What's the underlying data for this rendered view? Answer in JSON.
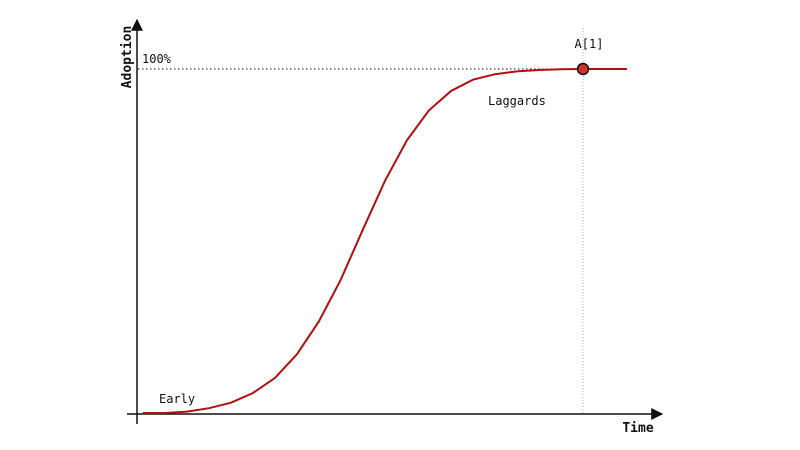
{
  "diagram": {
    "xlabel": "Time",
    "ylabel": "Adoption",
    "max_label": "100%",
    "point_label": "A[1]",
    "start_label": "Early",
    "end_label": "Laggards"
  },
  "chart_data": {
    "type": "line",
    "series": [
      {
        "x": [
          0,
          1,
          2,
          3,
          4,
          5,
          6,
          7,
          8,
          9,
          10,
          11,
          12,
          13,
          14,
          15,
          16,
          17,
          18,
          19,
          20,
          21,
          22
        ],
        "y": [
          0,
          0,
          0.4,
          1.4,
          3.0,
          5.8,
          10.2,
          17.1,
          26.7,
          38.9,
          53.4,
          67.5,
          79.3,
          88.0,
          93.6,
          96.9,
          98.5,
          99.3,
          99.7,
          99.9,
          100,
          100,
          100
        ]
      }
    ],
    "marker": {
      "x": 20,
      "y": 100
    },
    "xlim": [
      0,
      22
    ],
    "ylim": [
      0,
      100
    ],
    "colors": {
      "curve": "#b40f0f",
      "marker_fill": "#d32f2f",
      "axis": "#111111"
    }
  }
}
